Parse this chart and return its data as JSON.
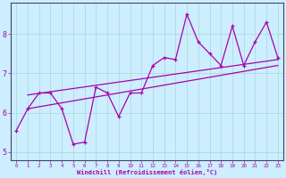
{
  "xlabel": "Windchill (Refroidissement éolien,°C)",
  "bg_color": "#cceeff",
  "line_color": "#aa00aa",
  "x_data": [
    0,
    1,
    2,
    3,
    4,
    5,
    6,
    7,
    8,
    9,
    10,
    11,
    12,
    13,
    14,
    15,
    16,
    17,
    18,
    19,
    20,
    21,
    22,
    23
  ],
  "y_main": [
    5.55,
    6.1,
    6.5,
    6.5,
    6.1,
    5.2,
    5.25,
    6.65,
    6.5,
    5.9,
    6.5,
    6.5,
    7.2,
    7.4,
    7.35,
    8.5,
    7.8,
    7.5,
    7.2,
    8.2,
    7.2,
    7.8,
    8.3,
    7.4
  ],
  "y_upper_start": 6.45,
  "y_upper_end": 7.35,
  "y_lower_start": 6.1,
  "y_lower_end": 7.2,
  "x_trend_start": 1,
  "x_trend_end": 23,
  "ylim": [
    4.8,
    8.8
  ],
  "yticks": [
    5,
    6,
    7,
    8
  ],
  "xlim": [
    -0.5,
    23.5
  ],
  "xticks": [
    0,
    1,
    2,
    3,
    4,
    5,
    6,
    7,
    8,
    9,
    10,
    11,
    12,
    13,
    14,
    15,
    16,
    17,
    18,
    19,
    20,
    21,
    22,
    23
  ]
}
